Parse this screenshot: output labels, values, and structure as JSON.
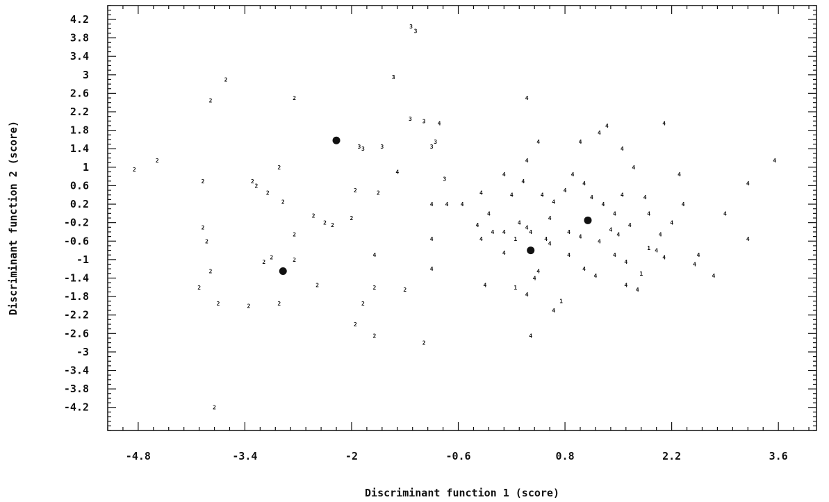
{
  "chart_data": {
    "type": "scatter",
    "xlabel": "Discriminant function 1 (score)",
    "ylabel": "Discriminant function 2 (score)",
    "xlim": [
      -5.2,
      4.1
    ],
    "ylim": [
      -4.7,
      4.5
    ],
    "x_ticks": [
      -4.8,
      -3.4,
      -2,
      -0.6,
      0.8,
      2.2,
      3.6
    ],
    "x_tick_labels": [
      "-4.8",
      "-3.4",
      "-2",
      "-0.6",
      "0.8",
      "2.2",
      "3.6"
    ],
    "y_ticks": [
      4.2,
      3.8,
      3.4,
      3,
      2.6,
      2.2,
      1.8,
      1.4,
      1,
      0.6,
      0.2,
      -0.2,
      -0.6,
      -1,
      -1.4,
      -1.8,
      -2.2,
      -2.6,
      -3,
      -3.4,
      -3.8,
      -4.2
    ],
    "y_tick_labels": [
      "4.2",
      "3.8",
      "3.4",
      "3",
      "2.6",
      "2.2",
      "1.8",
      "1.4",
      "1",
      "0.6",
      "0.2",
      "-0.2",
      "-0.6",
      "-1",
      "-1.4",
      "-1.8",
      "-2.2",
      "-2.6",
      "-3",
      "-3.4",
      "-3.8",
      "-4.2"
    ],
    "grid": false,
    "centroids": [
      {
        "x": -2.2,
        "y": 1.58
      },
      {
        "x": -2.9,
        "y": -1.25
      },
      {
        "x": 0.35,
        "y": -0.8
      },
      {
        "x": 1.1,
        "y": -0.15
      }
    ],
    "points": [
      {
        "x": -1.22,
        "y": 4.05,
        "label": "3"
      },
      {
        "x": -1.16,
        "y": 3.95,
        "label": "3"
      },
      {
        "x": -1.45,
        "y": 2.95,
        "label": "3"
      },
      {
        "x": -1.23,
        "y": 2.05,
        "label": "3"
      },
      {
        "x": -0.9,
        "y": 1.55,
        "label": "3"
      },
      {
        "x": -1.05,
        "y": 2.0,
        "label": "3"
      },
      {
        "x": -0.95,
        "y": 1.45,
        "label": "3"
      },
      {
        "x": -1.9,
        "y": 1.45,
        "label": "3"
      },
      {
        "x": -1.85,
        "y": 1.4,
        "label": "3"
      },
      {
        "x": -1.6,
        "y": 1.45,
        "label": "3"
      },
      {
        "x": -0.78,
        "y": 0.75,
        "label": "3"
      },
      {
        "x": -0.75,
        "y": 0.2,
        "label": "4"
      },
      {
        "x": -3.65,
        "y": 2.9,
        "label": "2"
      },
      {
        "x": -3.85,
        "y": 2.45,
        "label": "2"
      },
      {
        "x": -2.75,
        "y": 2.5,
        "label": "2"
      },
      {
        "x": -4.55,
        "y": 1.15,
        "label": "2"
      },
      {
        "x": -4.85,
        "y": 0.95,
        "label": "2"
      },
      {
        "x": -3.95,
        "y": 0.7,
        "label": "2"
      },
      {
        "x": -3.3,
        "y": 0.7,
        "label": "2"
      },
      {
        "x": -3.25,
        "y": 0.6,
        "label": "2"
      },
      {
        "x": -3.1,
        "y": 0.45,
        "label": "2"
      },
      {
        "x": -2.9,
        "y": 0.25,
        "label": "2"
      },
      {
        "x": -2.5,
        "y": -0.05,
        "label": "2"
      },
      {
        "x": -2.35,
        "y": -0.2,
        "label": "2"
      },
      {
        "x": -2.25,
        "y": -0.25,
        "label": "2"
      },
      {
        "x": -2.0,
        "y": -0.1,
        "label": "2"
      },
      {
        "x": -2.95,
        "y": 1.0,
        "label": "2"
      },
      {
        "x": -1.95,
        "y": 0.5,
        "label": "2"
      },
      {
        "x": -1.65,
        "y": 0.45,
        "label": "2"
      },
      {
        "x": -3.95,
        "y": -0.3,
        "label": "2"
      },
      {
        "x": -3.9,
        "y": -0.6,
        "label": "2"
      },
      {
        "x": -2.75,
        "y": -0.45,
        "label": "2"
      },
      {
        "x": -3.05,
        "y": -0.95,
        "label": "2"
      },
      {
        "x": -3.15,
        "y": -1.05,
        "label": "2"
      },
      {
        "x": -2.75,
        "y": -1.0,
        "label": "2"
      },
      {
        "x": -3.85,
        "y": -1.25,
        "label": "2"
      },
      {
        "x": -4.0,
        "y": -1.6,
        "label": "2"
      },
      {
        "x": -3.75,
        "y": -1.95,
        "label": "2"
      },
      {
        "x": -3.35,
        "y": -2.0,
        "label": "2"
      },
      {
        "x": -2.95,
        "y": -1.95,
        "label": "2"
      },
      {
        "x": -2.45,
        "y": -1.55,
        "label": "2"
      },
      {
        "x": -1.85,
        "y": -1.95,
        "label": "2"
      },
      {
        "x": -1.7,
        "y": -1.6,
        "label": "2"
      },
      {
        "x": -1.3,
        "y": -1.65,
        "label": "2"
      },
      {
        "x": -1.95,
        "y": -2.4,
        "label": "2"
      },
      {
        "x": -1.7,
        "y": -2.65,
        "label": "2"
      },
      {
        "x": -1.05,
        "y": -2.8,
        "label": "2"
      },
      {
        "x": -3.8,
        "y": -4.2,
        "label": "2"
      },
      {
        "x": -1.7,
        "y": -0.9,
        "label": "4"
      },
      {
        "x": -1.4,
        "y": 0.9,
        "label": "4"
      },
      {
        "x": -0.95,
        "y": -0.55,
        "label": "4"
      },
      {
        "x": -0.95,
        "y": -1.2,
        "label": "4"
      },
      {
        "x": -0.95,
        "y": 0.2,
        "label": "4"
      },
      {
        "x": -0.55,
        "y": 0.2,
        "label": "4"
      },
      {
        "x": -0.85,
        "y": 1.95,
        "label": "4"
      },
      {
        "x": 0.3,
        "y": 2.5,
        "label": "4"
      },
      {
        "x": 0.45,
        "y": 1.55,
        "label": "4"
      },
      {
        "x": 0.3,
        "y": 1.15,
        "label": "4"
      },
      {
        "x": -0.3,
        "y": 0.45,
        "label": "4"
      },
      {
        "x": -0.2,
        "y": 0.0,
        "label": "4"
      },
      {
        "x": -0.35,
        "y": -0.25,
        "label": "4"
      },
      {
        "x": -0.15,
        "y": -0.4,
        "label": "4"
      },
      {
        "x": -0.3,
        "y": -0.55,
        "label": "4"
      },
      {
        "x": -0.25,
        "y": -1.55,
        "label": "4"
      },
      {
        "x": 0.0,
        "y": 0.85,
        "label": "4"
      },
      {
        "x": 0.1,
        "y": 0.4,
        "label": "4"
      },
      {
        "x": 0.0,
        "y": -0.4,
        "label": "4"
      },
      {
        "x": 0.0,
        "y": -0.85,
        "label": "4"
      },
      {
        "x": 0.15,
        "y": -1.6,
        "label": "1"
      },
      {
        "x": 0.2,
        "y": -0.2,
        "label": "4"
      },
      {
        "x": 0.25,
        "y": 0.7,
        "label": "4"
      },
      {
        "x": 0.3,
        "y": -0.3,
        "label": "4"
      },
      {
        "x": 0.35,
        "y": -0.4,
        "label": "4"
      },
      {
        "x": 0.5,
        "y": 0.4,
        "label": "4"
      },
      {
        "x": 0.55,
        "y": -0.55,
        "label": "4"
      },
      {
        "x": 0.45,
        "y": -1.25,
        "label": "4"
      },
      {
        "x": 0.4,
        "y": -1.4,
        "label": "4"
      },
      {
        "x": 0.3,
        "y": -1.75,
        "label": "4"
      },
      {
        "x": 0.35,
        "y": -2.65,
        "label": "4"
      },
      {
        "x": 0.65,
        "y": -2.1,
        "label": "4"
      },
      {
        "x": 0.75,
        "y": -1.9,
        "label": "1"
      },
      {
        "x": 0.8,
        "y": 0.5,
        "label": "4"
      },
      {
        "x": 0.9,
        "y": 0.85,
        "label": "4"
      },
      {
        "x": 1.0,
        "y": 1.55,
        "label": "4"
      },
      {
        "x": 1.25,
        "y": 1.75,
        "label": "4"
      },
      {
        "x": 1.35,
        "y": 1.9,
        "label": "4"
      },
      {
        "x": 1.05,
        "y": 0.65,
        "label": "4"
      },
      {
        "x": 1.15,
        "y": 0.35,
        "label": "4"
      },
      {
        "x": 1.3,
        "y": 0.2,
        "label": "4"
      },
      {
        "x": 1.45,
        "y": 0.0,
        "label": "4"
      },
      {
        "x": 1.55,
        "y": 1.4,
        "label": "4"
      },
      {
        "x": 1.7,
        "y": 1.0,
        "label": "4"
      },
      {
        "x": 1.85,
        "y": 0.35,
        "label": "4"
      },
      {
        "x": 1.25,
        "y": -0.6,
        "label": "4"
      },
      {
        "x": 1.5,
        "y": -0.45,
        "label": "4"
      },
      {
        "x": 1.05,
        "y": -1.2,
        "label": "4"
      },
      {
        "x": 1.2,
        "y": -1.35,
        "label": "4"
      },
      {
        "x": 1.45,
        "y": -0.9,
        "label": "4"
      },
      {
        "x": 1.6,
        "y": -1.05,
        "label": "4"
      },
      {
        "x": 1.75,
        "y": -1.65,
        "label": "4"
      },
      {
        "x": 1.9,
        "y": -0.75,
        "label": "1"
      },
      {
        "x": 2.0,
        "y": -0.8,
        "label": "4"
      },
      {
        "x": 2.1,
        "y": -0.95,
        "label": "4"
      },
      {
        "x": 2.2,
        "y": -0.2,
        "label": "4"
      },
      {
        "x": 2.3,
        "y": 0.85,
        "label": "4"
      },
      {
        "x": 2.35,
        "y": 0.2,
        "label": "4"
      },
      {
        "x": 2.55,
        "y": -0.9,
        "label": "4"
      },
      {
        "x": 2.75,
        "y": -1.35,
        "label": "4"
      },
      {
        "x": 2.9,
        "y": 0.0,
        "label": "4"
      },
      {
        "x": 3.2,
        "y": 0.65,
        "label": "4"
      },
      {
        "x": 3.55,
        "y": 1.15,
        "label": "4"
      },
      {
        "x": 3.2,
        "y": -0.55,
        "label": "4"
      },
      {
        "x": 2.1,
        "y": 1.95,
        "label": "4"
      },
      {
        "x": 1.9,
        "y": 0.0,
        "label": "4"
      },
      {
        "x": 1.0,
        "y": -0.5,
        "label": "4"
      },
      {
        "x": 0.65,
        "y": 0.25,
        "label": "4"
      },
      {
        "x": 0.6,
        "y": -0.1,
        "label": "4"
      },
      {
        "x": 1.55,
        "y": 0.4,
        "label": "4"
      },
      {
        "x": 1.65,
        "y": -0.25,
        "label": "4"
      },
      {
        "x": 1.4,
        "y": -0.35,
        "label": "4"
      },
      {
        "x": 0.85,
        "y": -0.4,
        "label": "4"
      },
      {
        "x": 0.85,
        "y": -0.9,
        "label": "4"
      },
      {
        "x": 0.6,
        "y": -0.65,
        "label": "4"
      },
      {
        "x": 0.15,
        "y": -0.55,
        "label": "1"
      },
      {
        "x": 2.05,
        "y": -0.45,
        "label": "4"
      },
      {
        "x": 2.5,
        "y": -1.1,
        "label": "4"
      },
      {
        "x": 1.6,
        "y": -1.55,
        "label": "4"
      },
      {
        "x": 1.8,
        "y": -1.3,
        "label": "1"
      }
    ]
  }
}
